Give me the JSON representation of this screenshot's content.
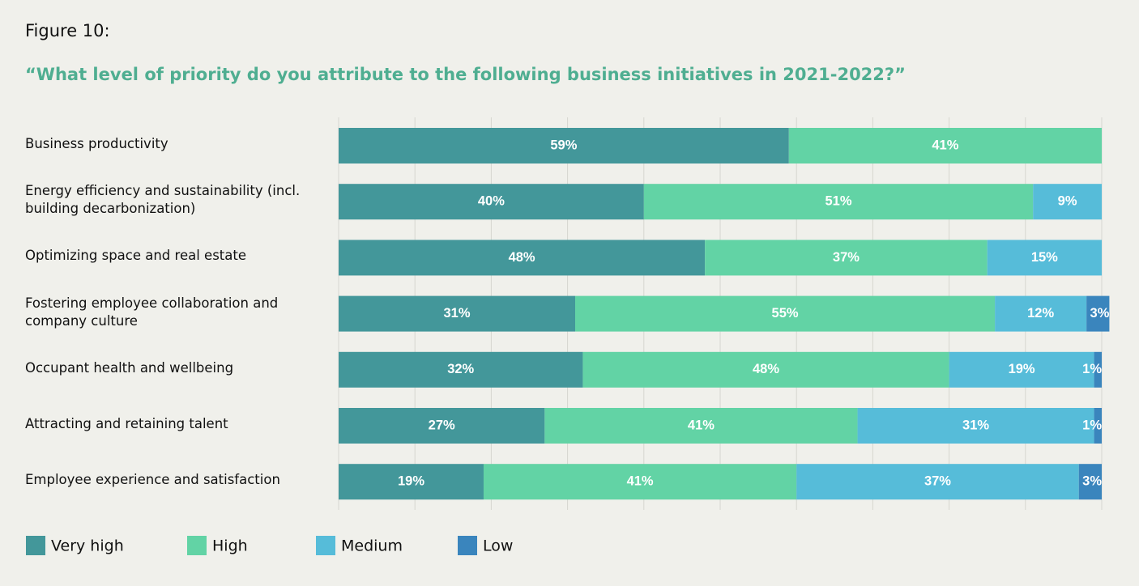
{
  "figure_label": "Figure 10:",
  "chart_data": {
    "type": "bar",
    "orientation": "horizontal",
    "stacked": true,
    "title": "“What level of priority do you attribute to the following business initiatives in 2021-2022?”",
    "categories": [
      "Business productivity",
      "Energy efficiency and sustainability (incl. building decarbonization)",
      "Optimizing space and real estate",
      "Fostering employee collaboration and company culture",
      "Occupant health and wellbeing",
      "Attracting and retaining talent",
      "Employee experience and satisfaction"
    ],
    "series": [
      {
        "name": "Very high",
        "color": "#43979a",
        "values": [
          59,
          40,
          48,
          31,
          32,
          27,
          19
        ],
        "value_labels": [
          "59%",
          "40%",
          "48%",
          "31%",
          "32%",
          "27%",
          "19%"
        ]
      },
      {
        "name": "High",
        "color": "#62d3a5",
        "values": [
          41,
          51,
          37,
          55,
          48,
          41,
          41
        ],
        "value_labels": [
          "41%",
          "51%",
          "37%",
          "55%",
          "48%",
          "41%",
          "41%"
        ]
      },
      {
        "name": "Medium",
        "color": "#56bcd9",
        "values": [
          0,
          9,
          15,
          12,
          19,
          31,
          37
        ],
        "value_labels": [
          null,
          "9%",
          "15%",
          "12%",
          "19%",
          "31%",
          "37%"
        ]
      },
      {
        "name": "Low",
        "color": "#3a85bd",
        "values": [
          0,
          0,
          0,
          3,
          1,
          1,
          3
        ],
        "value_labels": [
          null,
          null,
          null,
          "3%",
          "1%",
          "1%",
          "3%"
        ]
      }
    ],
    "xlim": [
      0,
      100
    ],
    "xticks": [
      0,
      10,
      20,
      30,
      40,
      50,
      60,
      70,
      80,
      90,
      100
    ],
    "grid": true,
    "legend": "bottom"
  }
}
